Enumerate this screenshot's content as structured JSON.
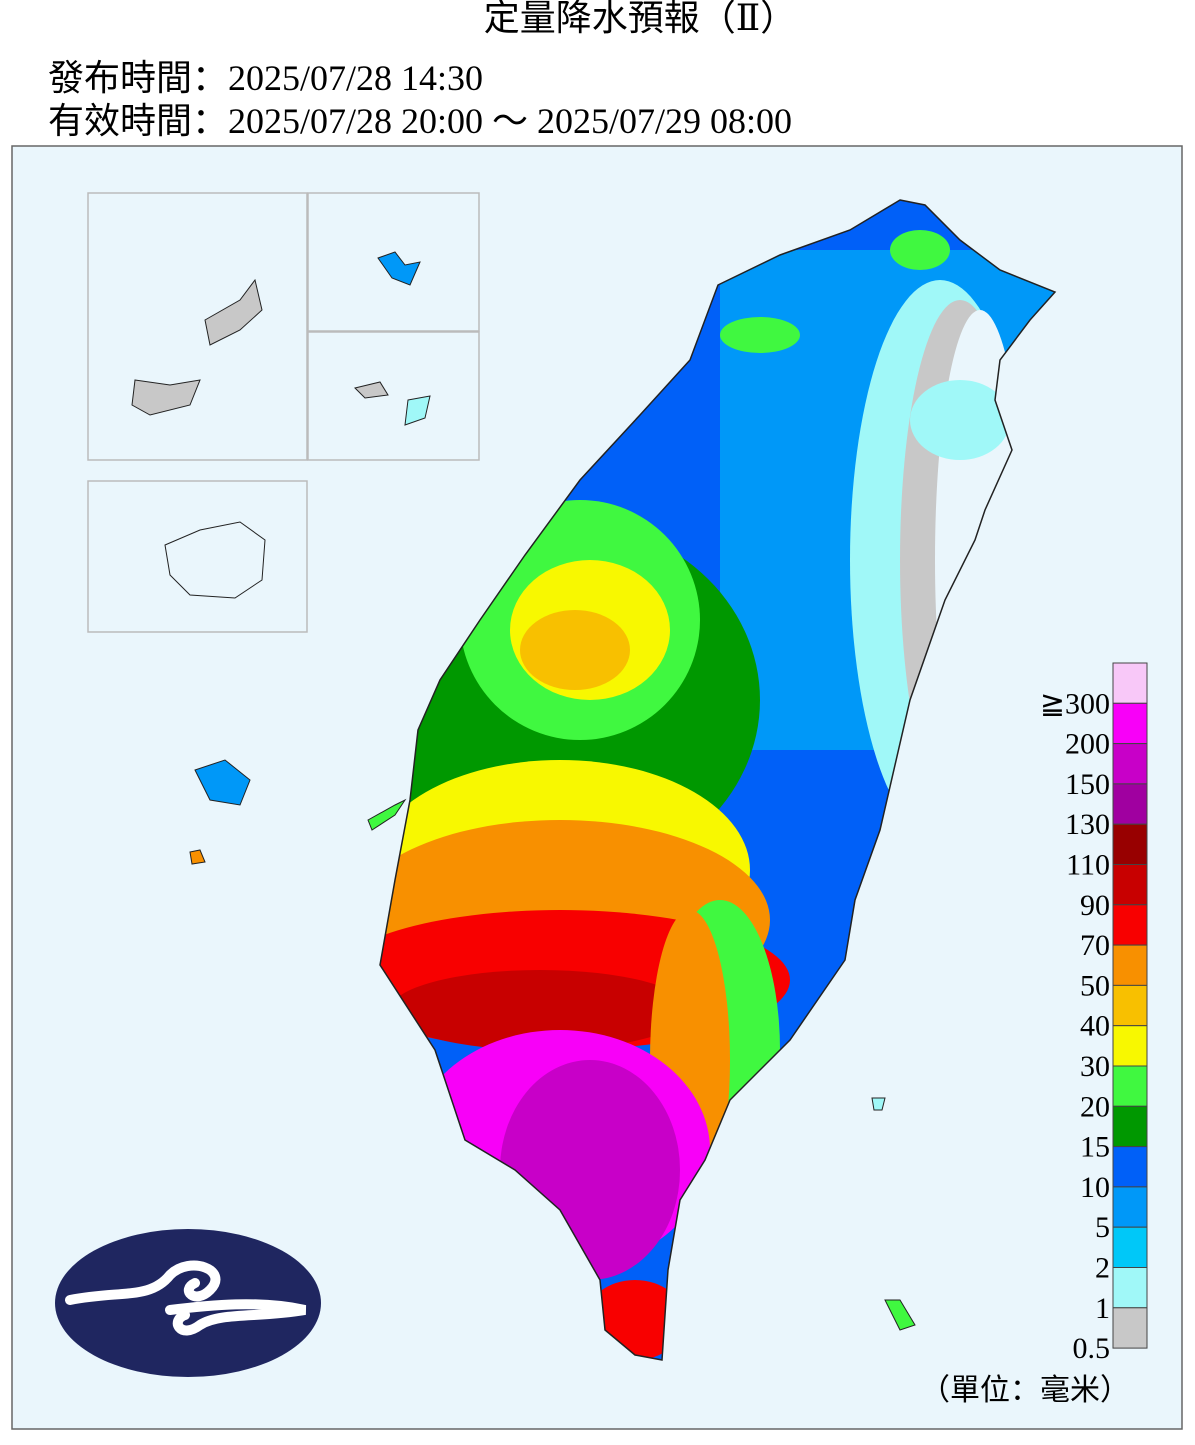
{
  "header": {
    "title": "定量降水預報（Ⅱ）",
    "issue_time": "發布時間：2025/07/28 14:30",
    "valid_time": "有效時間：2025/07/28 20:00 ～ 2025/07/29 08:00"
  },
  "legend": {
    "unit": "（單位：毫米）",
    "items": [
      {
        "label": "≧300",
        "color": "#f8c8f8"
      },
      {
        "label": "200",
        "color": "#f800f8"
      },
      {
        "label": "150",
        "color": "#c800c8"
      },
      {
        "label": "130",
        "color": "#a000a0"
      },
      {
        "label": "110",
        "color": "#980000"
      },
      {
        "label": "90",
        "color": "#c80000"
      },
      {
        "label": "70",
        "color": "#f80000"
      },
      {
        "label": "50",
        "color": "#f89000"
      },
      {
        "label": "40",
        "color": "#f8c000"
      },
      {
        "label": "30",
        "color": "#f8f800"
      },
      {
        "label": "20",
        "color": "#40f840"
      },
      {
        "label": "15",
        "color": "#009800"
      },
      {
        "label": "10",
        "color": "#0060f8"
      },
      {
        "label": "5",
        "color": "#0098f8"
      },
      {
        "label": "2",
        "color": "#00c8f8"
      },
      {
        "label": "1",
        "color": "#a0f8f8"
      },
      {
        "label": "0.5",
        "color": "#c8c8c8"
      }
    ]
  }
}
